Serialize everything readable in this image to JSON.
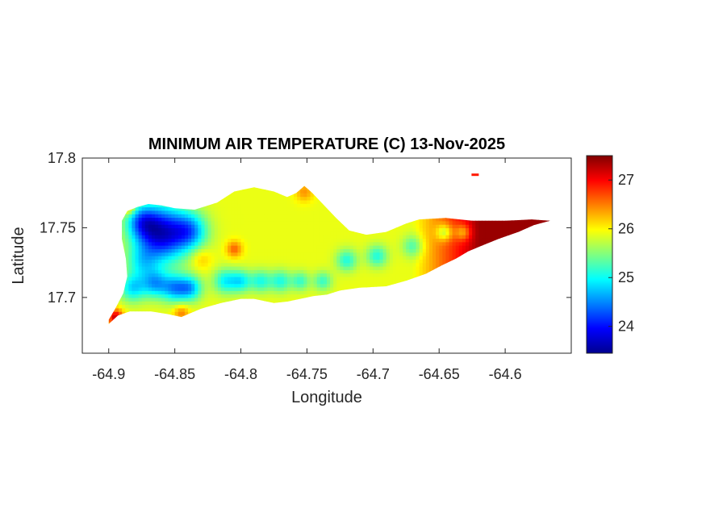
{
  "chart_data": {
    "type": "heatmap",
    "title": "MINIMUM AIR TEMPERATURE (C) 13-Nov-2025",
    "xlabel": "Longitude",
    "ylabel": "Latitude",
    "xlim": [
      -64.92,
      -64.55
    ],
    "ylim": [
      17.66,
      17.8
    ],
    "x_ticks": [
      -64.9,
      -64.85,
      -64.8,
      -64.75,
      -64.7,
      -64.65,
      -64.6
    ],
    "x_tick_labels": [
      "-64.9",
      "-64.85",
      "-64.8",
      "-64.75",
      "-64.7",
      "-64.65",
      "-64.6"
    ],
    "y_ticks": [
      17.7,
      17.75,
      17.8
    ],
    "y_tick_labels": [
      "17.7",
      "17.75",
      "17.8"
    ],
    "colorbar": {
      "colormap": "jet",
      "range": [
        23.45,
        27.5
      ],
      "ticks": [
        24,
        25,
        26,
        27
      ],
      "tick_labels": [
        "24",
        "25",
        "26",
        "27"
      ]
    },
    "island_outline": [
      [
        -64.9,
        17.681
      ],
      [
        -64.893,
        17.687
      ],
      [
        -64.884,
        17.69
      ],
      [
        -64.868,
        17.69
      ],
      [
        -64.855,
        17.688
      ],
      [
        -64.845,
        17.686
      ],
      [
        -64.84,
        17.688
      ],
      [
        -64.83,
        17.692
      ],
      [
        -64.815,
        17.696
      ],
      [
        -64.8,
        17.699
      ],
      [
        -64.79,
        17.699
      ],
      [
        -64.775,
        17.696
      ],
      [
        -64.765,
        17.697
      ],
      [
        -64.755,
        17.699
      ],
      [
        -64.745,
        17.701
      ],
      [
        -64.735,
        17.702
      ],
      [
        -64.725,
        17.705
      ],
      [
        -64.71,
        17.707
      ],
      [
        -64.69,
        17.708
      ],
      [
        -64.675,
        17.712
      ],
      [
        -64.66,
        17.717
      ],
      [
        -64.648,
        17.723
      ],
      [
        -64.637,
        17.728
      ],
      [
        -64.628,
        17.733
      ],
      [
        -64.618,
        17.737
      ],
      [
        -64.605,
        17.742
      ],
      [
        -64.59,
        17.747
      ],
      [
        -64.578,
        17.752
      ],
      [
        -64.566,
        17.755
      ],
      [
        -64.58,
        17.756
      ],
      [
        -64.6,
        17.755
      ],
      [
        -64.625,
        17.755
      ],
      [
        -64.645,
        17.757
      ],
      [
        -64.665,
        17.756
      ],
      [
        -64.675,
        17.753
      ],
      [
        -64.69,
        17.747
      ],
      [
        -64.705,
        17.745
      ],
      [
        -64.718,
        17.748
      ],
      [
        -64.728,
        17.757
      ],
      [
        -64.738,
        17.767
      ],
      [
        -64.746,
        17.775
      ],
      [
        -64.752,
        17.78
      ],
      [
        -64.758,
        17.775
      ],
      [
        -64.765,
        17.772
      ],
      [
        -64.775,
        17.776
      ],
      [
        -64.79,
        17.779
      ],
      [
        -64.805,
        17.776
      ],
      [
        -64.818,
        17.768
      ],
      [
        -64.835,
        17.763
      ],
      [
        -64.85,
        17.764
      ],
      [
        -64.86,
        17.766
      ],
      [
        -64.87,
        17.767
      ],
      [
        -64.878,
        17.765
      ],
      [
        -64.886,
        17.762
      ],
      [
        -64.89,
        17.755
      ],
      [
        -64.89,
        17.742
      ],
      [
        -64.887,
        17.728
      ],
      [
        -64.886,
        17.715
      ],
      [
        -64.889,
        17.703
      ],
      [
        -64.895,
        17.692
      ],
      [
        -64.9,
        17.684
      ]
    ],
    "grid_spec": {
      "lon_start": -64.905,
      "lon_step": 0.0025,
      "lat_start": 17.675,
      "lat_step": 0.0025,
      "cols": 140,
      "rows": 45
    },
    "field_model": {
      "base_value": 25.9,
      "east_gradient": {
        "start_lon": -64.67,
        "per_degree": 30,
        "max_add": 1.5
      },
      "perturbations": [
        {
          "lon": -64.86,
          "lat": 17.746,
          "amp": -2.1,
          "radius": 0.02
        },
        {
          "lon": -64.838,
          "lat": 17.748,
          "amp": -1.1,
          "radius": 0.013
        },
        {
          "lon": -64.875,
          "lat": 17.755,
          "amp": -1.0,
          "radius": 0.012
        },
        {
          "lon": -64.882,
          "lat": 17.707,
          "amp": -1.0,
          "radius": 0.01
        },
        {
          "lon": -64.865,
          "lat": 17.71,
          "amp": -1.1,
          "radius": 0.01
        },
        {
          "lon": -64.85,
          "lat": 17.707,
          "amp": -1.2,
          "radius": 0.01
        },
        {
          "lon": -64.838,
          "lat": 17.707,
          "amp": -1.1,
          "radius": 0.009
        },
        {
          "lon": -64.812,
          "lat": 17.712,
          "amp": -0.9,
          "radius": 0.009
        },
        {
          "lon": -64.8,
          "lat": 17.712,
          "amp": -0.9,
          "radius": 0.008
        },
        {
          "lon": -64.785,
          "lat": 17.712,
          "amp": -0.8,
          "radius": 0.008
        },
        {
          "lon": -64.77,
          "lat": 17.712,
          "amp": -0.8,
          "radius": 0.008
        },
        {
          "lon": -64.755,
          "lat": 17.712,
          "amp": -0.7,
          "radius": 0.007
        },
        {
          "lon": -64.738,
          "lat": 17.712,
          "amp": -0.7,
          "radius": 0.007
        },
        {
          "lon": -64.72,
          "lat": 17.727,
          "amp": -0.8,
          "radius": 0.008
        },
        {
          "lon": -64.697,
          "lat": 17.73,
          "amp": -0.8,
          "radius": 0.008
        },
        {
          "lon": -64.67,
          "lat": 17.737,
          "amp": -0.6,
          "radius": 0.008
        },
        {
          "lon": -64.646,
          "lat": 17.747,
          "amp": -0.8,
          "radius": 0.006
        },
        {
          "lon": -64.632,
          "lat": 17.747,
          "amp": -0.7,
          "radius": 0.006
        },
        {
          "lon": -64.875,
          "lat": 17.725,
          "amp": -0.7,
          "radius": 0.012
        },
        {
          "lon": -64.805,
          "lat": 17.735,
          "amp": 0.7,
          "radius": 0.006
        },
        {
          "lon": -64.83,
          "lat": 17.728,
          "amp": 0.35,
          "radius": 0.008
        },
        {
          "lon": -64.845,
          "lat": 17.689,
          "amp": 0.6,
          "radius": 0.006
        },
        {
          "lon": -64.895,
          "lat": 17.686,
          "amp": 1.3,
          "radius": 0.006
        },
        {
          "lon": -64.885,
          "lat": 17.765,
          "amp": 0.8,
          "radius": 0.005
        },
        {
          "lon": -64.752,
          "lat": 17.776,
          "amp": 0.5,
          "radius": 0.007
        }
      ]
    },
    "islet": {
      "lon": -64.623,
      "lat": 17.788,
      "value": 26.9
    }
  }
}
